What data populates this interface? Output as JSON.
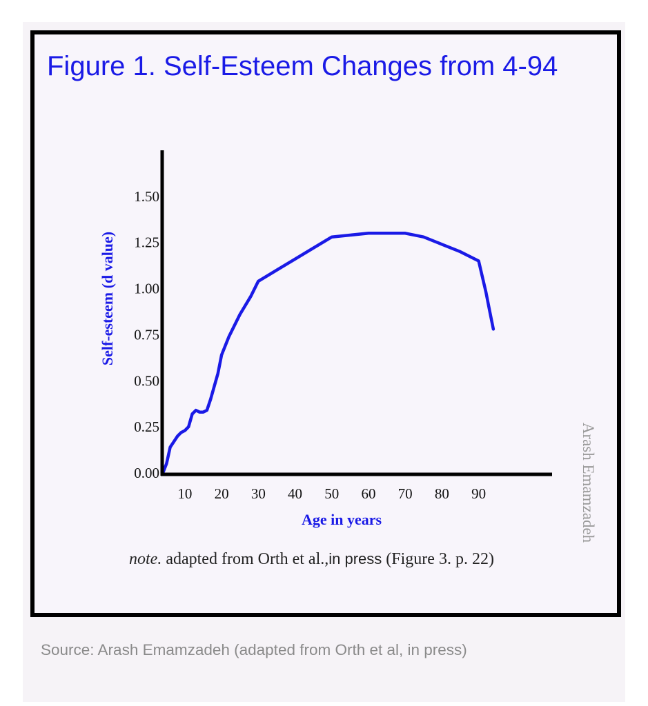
{
  "chart_data": {
    "type": "line",
    "title": "Figure 1. Self-Esteem Changes from 4-94",
    "xlabel": "Age in years",
    "ylabel": "Self-esteem (d value)",
    "xlim": [
      4,
      110
    ],
    "ylim": [
      0,
      1.75
    ],
    "x_ticks": [
      10,
      20,
      30,
      40,
      50,
      60,
      70,
      80,
      90
    ],
    "y_ticks": [
      "0.00",
      "0.25",
      "0.50",
      "0.75",
      "1.00",
      "1.25",
      "1.50"
    ],
    "grid": false,
    "legend": "none",
    "line_color": "#1a1ae6",
    "series": [
      {
        "x": [
          4,
          5,
          6,
          7,
          8,
          9,
          10,
          11,
          12,
          13,
          14,
          15,
          16,
          17,
          18,
          19,
          20,
          22,
          25,
          28,
          30,
          35,
          40,
          45,
          50,
          55,
          60,
          65,
          70,
          75,
          80,
          85,
          90,
          92,
          93,
          94
        ],
        "y": [
          0.0,
          0.05,
          0.14,
          0.17,
          0.2,
          0.22,
          0.23,
          0.25,
          0.32,
          0.34,
          0.33,
          0.33,
          0.34,
          0.4,
          0.47,
          0.54,
          0.64,
          0.74,
          0.86,
          0.96,
          1.04,
          1.1,
          1.16,
          1.22,
          1.28,
          1.29,
          1.3,
          1.3,
          1.3,
          1.28,
          1.24,
          1.2,
          1.15,
          0.98,
          0.88,
          0.78
        ]
      }
    ]
  },
  "note": {
    "prefix": "note.",
    "text_a": "adapted from Orth et al.,",
    "text_b": "in press",
    "text_c": "(Figure 3. p. 22)"
  },
  "watermark": "Arash Emamzadeh",
  "source_caption": "Source: Arash Emamzadeh (adapted from Orth et al, in press)"
}
